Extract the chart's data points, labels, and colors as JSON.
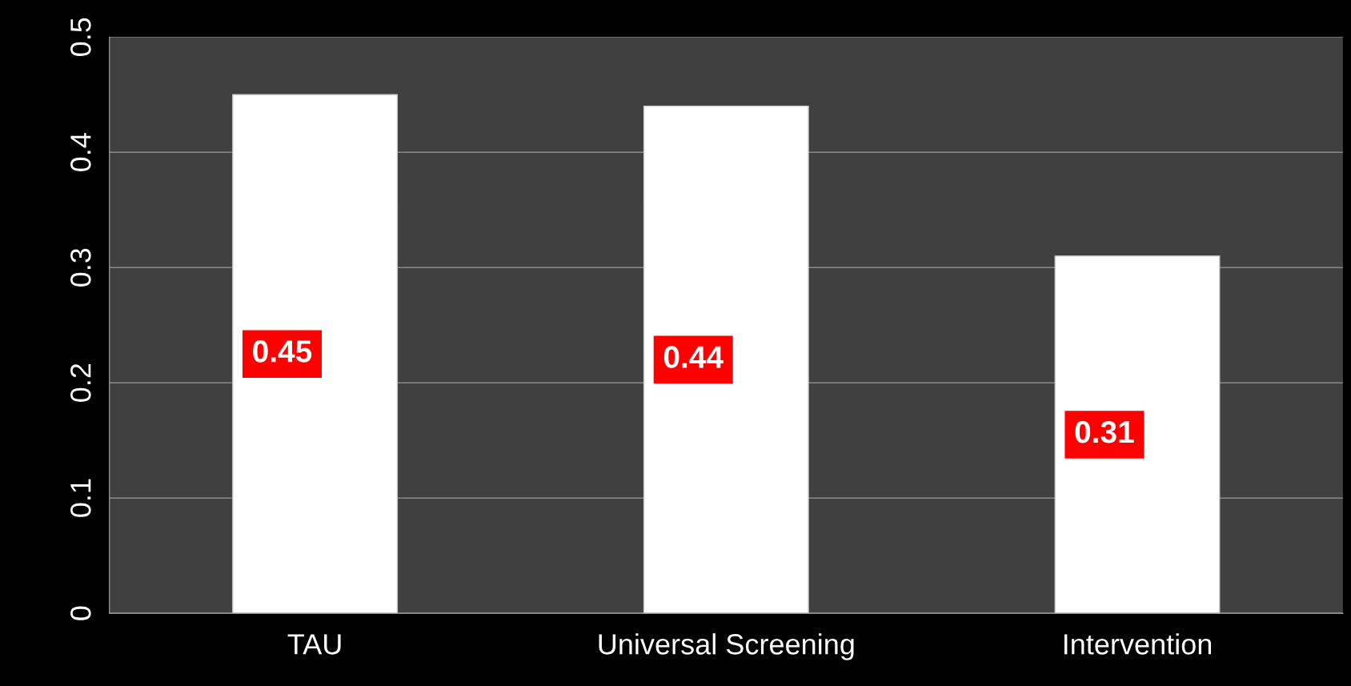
{
  "chart_data": {
    "type": "bar",
    "categories": [
      "TAU",
      "Universal Screening",
      "Intervention"
    ],
    "values": [
      0.45,
      0.44,
      0.31
    ],
    "color": "#ffffff",
    "ylim": [
      0,
      0.5
    ],
    "yticks": [
      0,
      0.1,
      0.2,
      0.3,
      0.4,
      0.5
    ],
    "grid": "y",
    "data_labels": true,
    "legend": false
  }
}
